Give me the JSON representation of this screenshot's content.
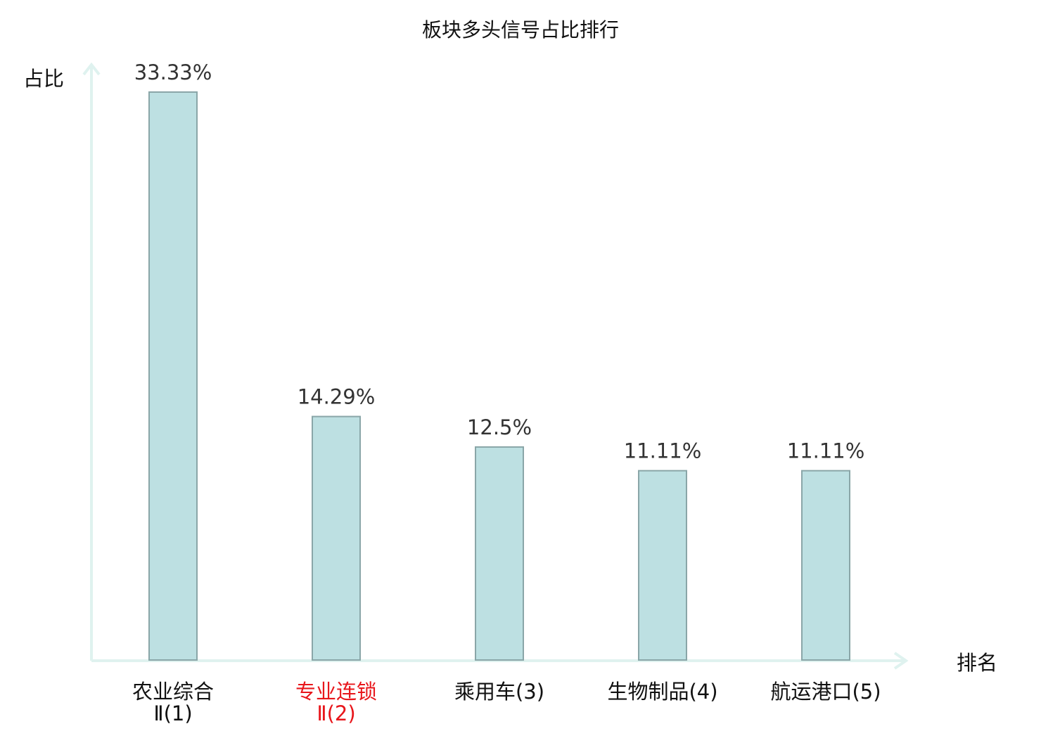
{
  "chart_data": {
    "type": "bar",
    "title": "板块多头信号占比排行",
    "ylabel": "占比",
    "xlabel": "排名",
    "ylim": [
      0,
      35
    ],
    "grid": false,
    "categories": [
      {
        "name": "农业综合",
        "suffix": "Ⅱ",
        "rank": "(1)",
        "highlight": false
      },
      {
        "name": "专业连锁",
        "suffix": "Ⅱ",
        "rank": "(2)",
        "highlight": true
      },
      {
        "name": "乘用车",
        "suffix": "",
        "rank": "(3)",
        "highlight": false
      },
      {
        "name": "生物制品",
        "suffix": "",
        "rank": "(4)",
        "highlight": false
      },
      {
        "name": "航运港口",
        "suffix": "",
        "rank": "(5)",
        "highlight": false
      }
    ],
    "values": [
      33.33,
      14.29,
      12.5,
      11.11,
      11.11
    ],
    "value_labels": [
      "33.33%",
      "14.29%",
      "12.5%",
      "11.11%",
      "11.11%"
    ],
    "colors": {
      "bar_fill": "#bde0e2",
      "bar_stroke": "#8aa6a8",
      "axis": "#dff2ef",
      "highlight_text": "#e8161b",
      "normal_text": "#111111"
    }
  }
}
